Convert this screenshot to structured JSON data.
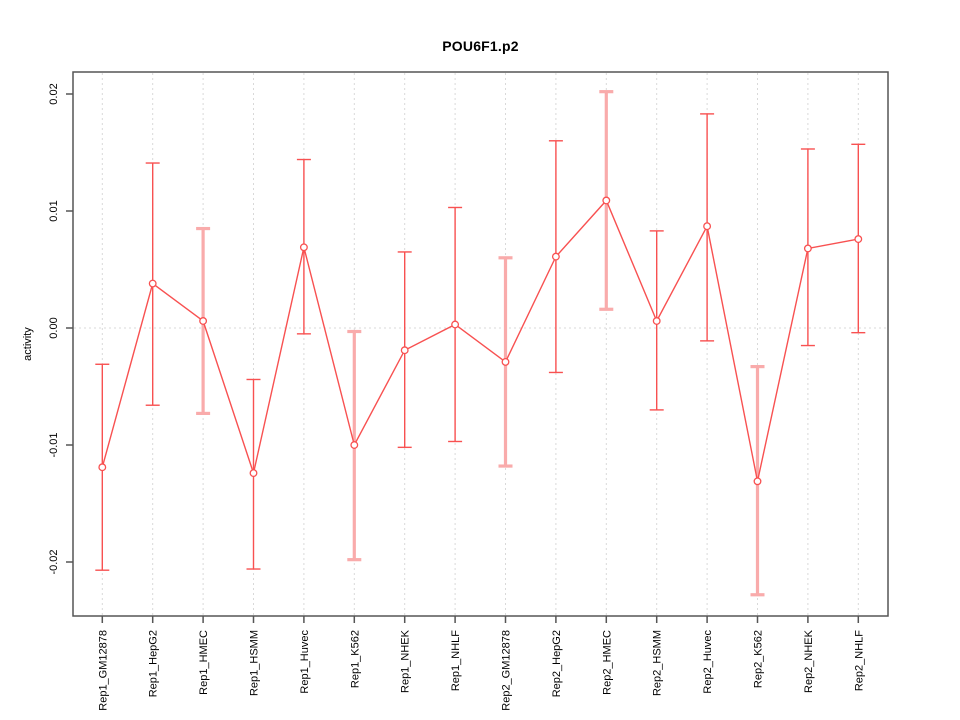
{
  "chart_data": {
    "type": "line",
    "title": "POU6F1.p2",
    "xlabel": "",
    "ylabel": "activity",
    "legend": "none",
    "marker": "open-circle",
    "grid": {
      "vertical": "dotted-at-each-category",
      "horizontal": "dotted-at-zero-only"
    },
    "categories": [
      "Rep1_GM12878",
      "Rep1_HepG2",
      "Rep1_HMEC",
      "Rep1_HSMM",
      "Rep1_Huvec",
      "Rep1_K562",
      "Rep1_NHEK",
      "Rep1_NHLF",
      "Rep2_GM12878",
      "Rep2_HepG2",
      "Rep2_HMEC",
      "Rep2_HSMM",
      "Rep2_Huvec",
      "Rep2_K562",
      "Rep2_NHEK",
      "Rep2_NHLF"
    ],
    "series": [
      {
        "name": "activity",
        "values": [
          -0.0119,
          0.0038,
          0.0006,
          -0.0124,
          0.0069,
          -0.01,
          -0.0019,
          0.0003,
          -0.0029,
          0.0061,
          0.0109,
          0.0006,
          0.0087,
          -0.0131,
          0.0068,
          0.0076
        ],
        "upper": [
          -0.0031,
          0.0141,
          0.0085,
          -0.0044,
          0.0144,
          -0.0003,
          0.0065,
          0.0103,
          0.006,
          0.016,
          0.0202,
          0.0083,
          0.0183,
          -0.0033,
          0.0153,
          0.0157
        ],
        "lower": [
          -0.0207,
          -0.0066,
          -0.0073,
          -0.0206,
          -0.0005,
          -0.0198,
          -0.0102,
          -0.0097,
          -0.0118,
          -0.0038,
          0.0016,
          -0.007,
          -0.0011,
          -0.0228,
          -0.0015,
          -0.0004
        ]
      }
    ],
    "emphasized_error_bars": [
      "Rep1_HMEC",
      "Rep1_K562",
      "Rep2_GM12878",
      "Rep2_HMEC",
      "Rep2_K562"
    ],
    "ytick_labels": [
      "-0.02",
      "-0.01",
      "0.00",
      "0.01",
      "0.02"
    ],
    "ytick_values": [
      -0.02,
      -0.01,
      0,
      0.01,
      0.02
    ],
    "ylim": [
      -0.0246,
      0.0219
    ],
    "colors": {
      "series_line": "#f85151",
      "error_bar": "#f85151",
      "error_bar_emphasis": "#f9abab",
      "marker_fill": "#ffffff",
      "grid": "#d9d9d9",
      "axis": "#555555",
      "text": "#000000",
      "background": "#ffffff"
    }
  }
}
